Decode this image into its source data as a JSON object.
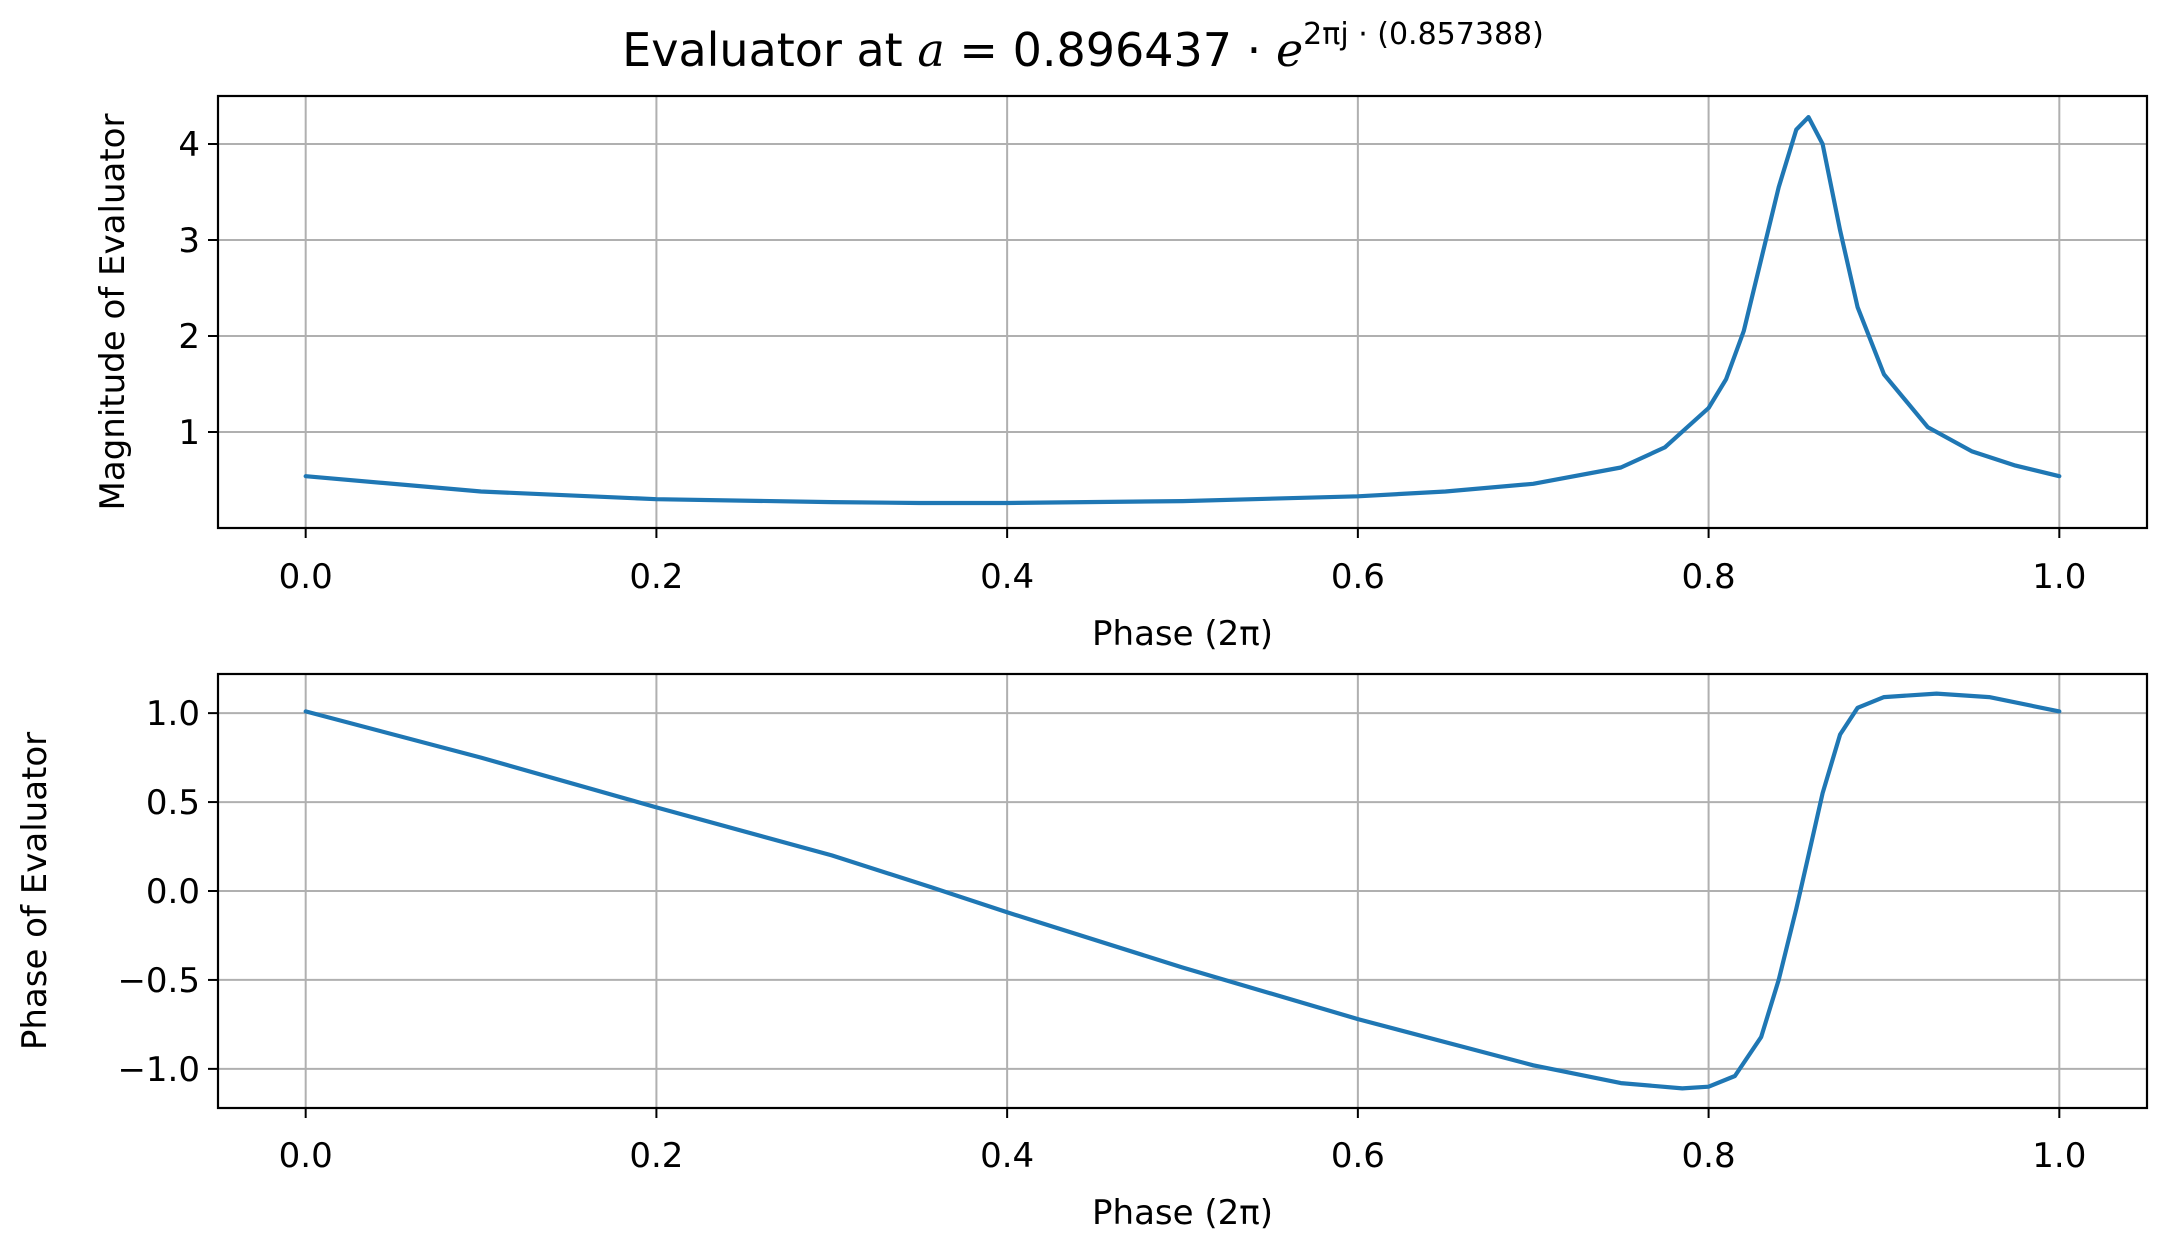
{
  "title": {
    "prefix": "Evaluator at ",
    "var": "a",
    "equals": " = 0.896437 · ",
    "base": "e",
    "exp_prefix": "2πj · ",
    "exp_value": "(0.857388)"
  },
  "colors": {
    "series": "#1f77b4"
  },
  "chart_data": [
    {
      "type": "line",
      "xlabel": "Phase (2π)",
      "ylabel": "Magnitude of Evaluator",
      "xlim": [
        -0.05,
        1.05
      ],
      "ylim": [
        0.0,
        4.5
      ],
      "xticks": [
        0.0,
        0.2,
        0.4,
        0.6,
        0.8,
        1.0
      ],
      "xtick_labels": [
        "0.0",
        "0.2",
        "0.4",
        "0.6",
        "0.8",
        "1.0"
      ],
      "yticks": [
        1,
        2,
        3,
        4
      ],
      "ytick_labels": [
        "1",
        "2",
        "3",
        "4"
      ],
      "grid": true,
      "series": [
        {
          "x": [
            0.0,
            0.1,
            0.2,
            0.3,
            0.35,
            0.4,
            0.5,
            0.6,
            0.65,
            0.7,
            0.75,
            0.775,
            0.8,
            0.81,
            0.82,
            0.83,
            0.84,
            0.85,
            0.857,
            0.865,
            0.875,
            0.885,
            0.9,
            0.925,
            0.95,
            0.975,
            1.0
          ],
          "y": [
            0.54,
            0.38,
            0.3,
            0.27,
            0.26,
            0.26,
            0.28,
            0.33,
            0.38,
            0.46,
            0.63,
            0.84,
            1.25,
            1.55,
            2.05,
            2.8,
            3.55,
            4.15,
            4.28,
            4.0,
            3.1,
            2.3,
            1.6,
            1.05,
            0.8,
            0.65,
            0.54
          ]
        }
      ]
    },
    {
      "type": "line",
      "xlabel": "Phase (2π)",
      "ylabel": "Phase of Evaluator",
      "xlim": [
        -0.05,
        1.05
      ],
      "ylim": [
        -1.22,
        1.22
      ],
      "xticks": [
        0.0,
        0.2,
        0.4,
        0.6,
        0.8,
        1.0
      ],
      "xtick_labels": [
        "0.0",
        "0.2",
        "0.4",
        "0.6",
        "0.8",
        "1.0"
      ],
      "yticks": [
        1.0,
        0.5,
        0.0,
        -0.5,
        -1.0
      ],
      "ytick_labels": [
        "1.0",
        "0.5",
        "0.0",
        "−0.5",
        "−1.0"
      ],
      "grid": true,
      "series": [
        {
          "x": [
            0.0,
            0.1,
            0.2,
            0.3,
            0.357,
            0.4,
            0.5,
            0.6,
            0.7,
            0.75,
            0.785,
            0.8,
            0.815,
            0.83,
            0.84,
            0.85,
            0.857,
            0.865,
            0.875,
            0.885,
            0.9,
            0.93,
            0.96,
            1.0
          ],
          "y": [
            1.01,
            0.75,
            0.47,
            0.2,
            0.02,
            -0.12,
            -0.43,
            -0.72,
            -0.98,
            -1.08,
            -1.11,
            -1.1,
            -1.04,
            -0.82,
            -0.5,
            -0.1,
            0.2,
            0.55,
            0.88,
            1.03,
            1.09,
            1.11,
            1.09,
            1.01
          ]
        }
      ]
    }
  ]
}
